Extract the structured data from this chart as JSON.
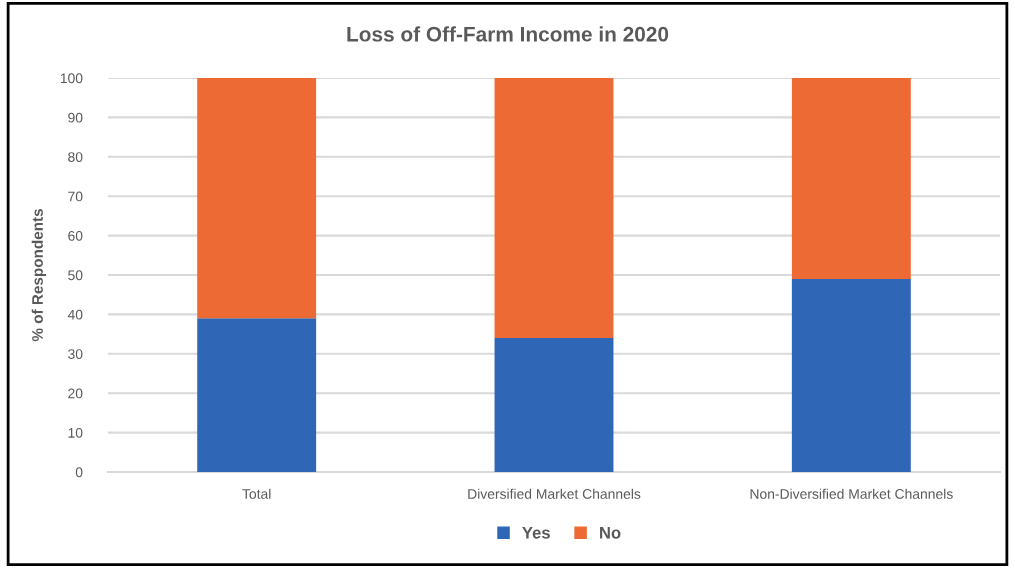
{
  "chart_data": {
    "type": "bar",
    "title": "Loss of Off-Farm Income in 2020",
    "ylabel": "% of Respondents",
    "categories": [
      "Total",
      "Diversified Market Channels",
      "Non-Diversified Market Channels"
    ],
    "series": [
      {
        "name": "Yes",
        "color": "#2f67b6",
        "values": [
          39,
          34,
          49
        ]
      },
      {
        "name": "No",
        "color": "#ee6a34",
        "values": [
          61,
          66,
          51
        ]
      }
    ],
    "stacked": true,
    "ylim": [
      0,
      100
    ],
    "yticks": [
      0,
      10,
      20,
      30,
      40,
      50,
      60,
      70,
      80,
      90,
      100
    ],
    "grid": "y",
    "legend": "bottom"
  }
}
